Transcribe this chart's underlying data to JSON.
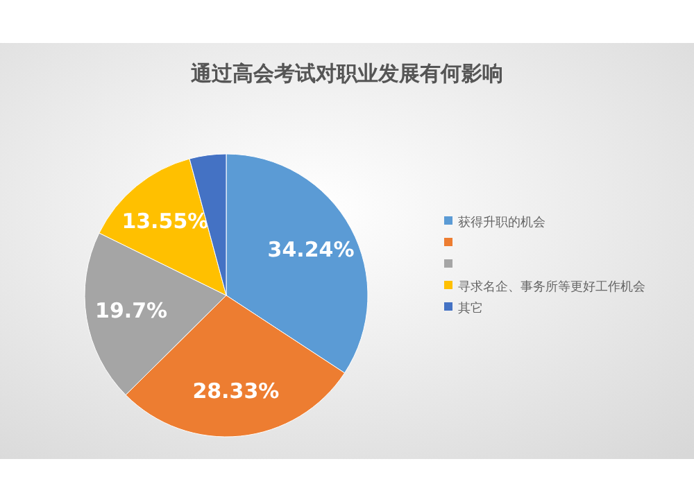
{
  "chart_data": {
    "type": "pie",
    "title": "通过高会考试对职业发展有何影响",
    "categories": [
      "获得升职的机会",
      null,
      null,
      "寻求名企、事务所等更好工作机会",
      "其它"
    ],
    "values": [
      34.24,
      28.33,
      19.7,
      13.55,
      4.18
    ],
    "colors": [
      "#5b9bd5",
      "#ed7d31",
      "#a5a5a5",
      "#ffc000",
      "#4472c4"
    ],
    "value_labels": [
      "34.24%",
      "28.33%",
      "19.7%",
      "13.55%",
      null
    ],
    "legend": "right"
  }
}
